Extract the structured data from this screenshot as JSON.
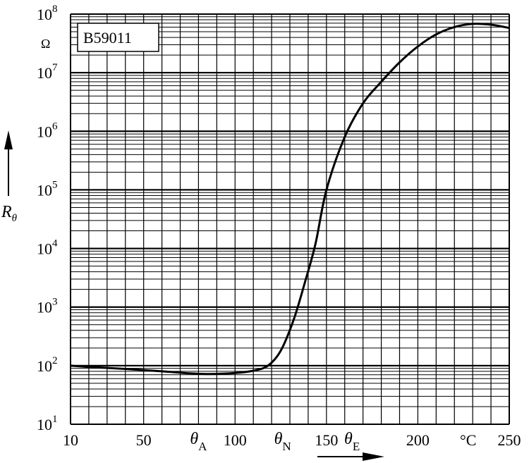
{
  "chart_data": {
    "type": "line",
    "title": "",
    "xlabel": "°C",
    "ylabel": "Rθ",
    "y_scale": "log",
    "xlim": [
      10,
      250
    ],
    "ylim": [
      10,
      100000000
    ],
    "grid": true,
    "unit_label": "Ω",
    "legend_box": "B59011",
    "x_ticks": [
      {
        "value": 10,
        "label": "10"
      },
      {
        "value": 50,
        "label": "50"
      },
      {
        "value": 100,
        "label": "100"
      },
      {
        "value": 150,
        "label": "150"
      },
      {
        "value": 200,
        "label": "200"
      },
      {
        "value": 250,
        "label": "250"
      }
    ],
    "y_ticks": [
      {
        "value": 10,
        "base": "10",
        "exp": "1"
      },
      {
        "value": 100,
        "base": "10",
        "exp": "2"
      },
      {
        "value": 1000,
        "base": "10",
        "exp": "3"
      },
      {
        "value": 10000,
        "base": "10",
        "exp": "4"
      },
      {
        "value": 100000,
        "base": "10",
        "exp": "5"
      },
      {
        "value": 1000000,
        "base": "10",
        "exp": "6"
      },
      {
        "value": 10000000,
        "base": "10",
        "exp": "7"
      },
      {
        "value": 100000000,
        "base": "10",
        "exp": "8"
      }
    ],
    "annotations": [
      {
        "value": 80,
        "symbol": "θ",
        "sub": "A"
      },
      {
        "value": 126,
        "symbol": "θ",
        "sub": "N"
      },
      {
        "value": 164,
        "symbol": "θ",
        "sub": "E"
      }
    ],
    "series": [
      {
        "x": [
          10,
          20,
          40,
          60,
          75,
          85,
          100,
          110,
          118,
          125,
          132,
          138,
          144,
          150,
          160,
          170,
          180,
          190,
          200,
          210,
          220,
          230,
          240,
          250
        ],
        "y": [
          100,
          95,
          88,
          80,
          74,
          72,
          75,
          82,
          100,
          180,
          600,
          2500,
          12000,
          100000,
          800000,
          3000000,
          7000000,
          15000000,
          28000000,
          45000000,
          60000000,
          68000000,
          66000000,
          58000000
        ]
      }
    ]
  }
}
